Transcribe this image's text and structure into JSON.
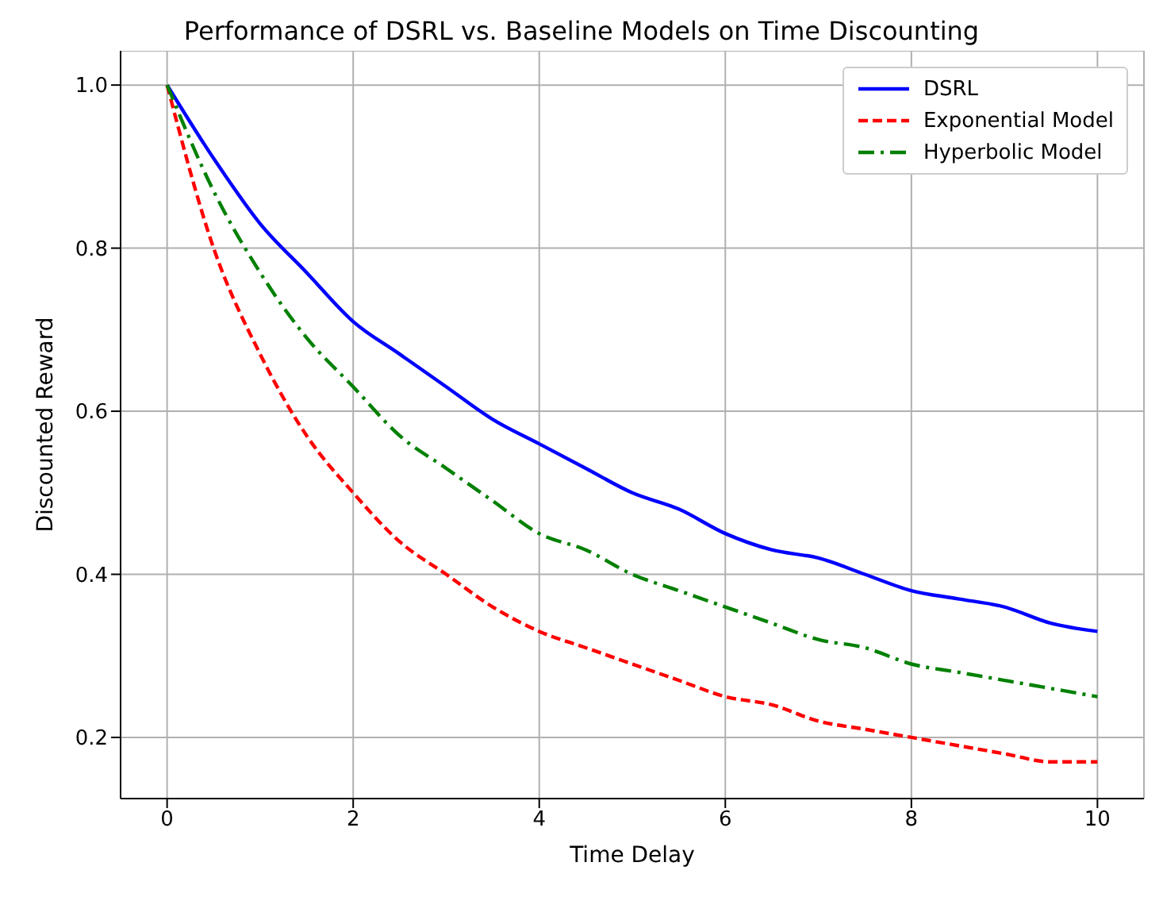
{
  "chart_data": {
    "type": "line",
    "title": "Performance of DSRL vs. Baseline Models on Time Discounting",
    "xlabel": "Time Delay",
    "ylabel": "Discounted Reward",
    "x": [
      0,
      0.5,
      1,
      1.5,
      2,
      2.5,
      3,
      3.5,
      4,
      4.5,
      5,
      5.5,
      6,
      6.5,
      7,
      7.5,
      8,
      8.5,
      9,
      9.5,
      10
    ],
    "series": [
      {
        "name": "DSRL",
        "color": "#0000ff",
        "line_style": "solid",
        "values": [
          1,
          0.91,
          0.83,
          0.77,
          0.71,
          0.67,
          0.63,
          0.59,
          0.56,
          0.53,
          0.5,
          0.48,
          0.45,
          0.43,
          0.42,
          0.4,
          0.38,
          0.37,
          0.36,
          0.34,
          0.33
        ]
      },
      {
        "name": "Exponential Model",
        "color": "#ff0000",
        "line_style": "dashed",
        "values": [
          1,
          0.8,
          0.67,
          0.57,
          0.5,
          0.44,
          0.4,
          0.36,
          0.33,
          0.31,
          0.29,
          0.27,
          0.25,
          0.24,
          0.22,
          0.21,
          0.2,
          0.19,
          0.18,
          0.17,
          0.17
        ]
      },
      {
        "name": "Hyperbolic Model",
        "color": "#008000",
        "line_style": "dashdot",
        "values": [
          1,
          0.87,
          0.77,
          0.69,
          0.63,
          0.57,
          0.53,
          0.49,
          0.45,
          0.43,
          0.4,
          0.38,
          0.36,
          0.34,
          0.32,
          0.31,
          0.29,
          0.28,
          0.27,
          0.26,
          0.25
        ]
      }
    ],
    "xlim": [
      -0.5,
      10.5
    ],
    "xticks": [
      0,
      2,
      4,
      6,
      8,
      10
    ],
    "ylim": [
      0.125,
      1.042
    ],
    "yticks": [
      {
        "value": 0.2,
        "label": "0.2"
      },
      {
        "value": 0.4,
        "label": "0.4"
      },
      {
        "value": 0.6,
        "label": "0.6"
      },
      {
        "value": 0.8,
        "label": "0.8"
      },
      {
        "value": 1,
        "label": "1.0"
      }
    ],
    "grid": true,
    "legend": "top right",
    "marker": "none"
  }
}
